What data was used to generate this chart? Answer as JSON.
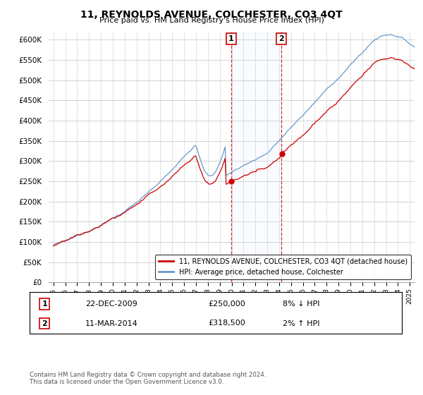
{
  "title": "11, REYNOLDS AVENUE, COLCHESTER, CO3 4QT",
  "subtitle": "Price paid vs. HM Land Registry's House Price Index (HPI)",
  "ylim": [
    0,
    620000
  ],
  "yticks": [
    0,
    50000,
    100000,
    150000,
    200000,
    250000,
    300000,
    350000,
    400000,
    450000,
    500000,
    550000,
    600000
  ],
  "legend_line1": "11, REYNOLDS AVENUE, COLCHESTER, CO3 4QT (detached house)",
  "legend_line2": "HPI: Average price, detached house, Colchester",
  "annotation1_date": "22-DEC-2009",
  "annotation1_price": "£250,000",
  "annotation1_hpi": "8% ↓ HPI",
  "annotation2_date": "11-MAR-2014",
  "annotation2_price": "£318,500",
  "annotation2_hpi": "2% ↑ HPI",
  "footer": "Contains HM Land Registry data © Crown copyright and database right 2024.\nThis data is licensed under the Open Government Licence v3.0.",
  "line_color_red": "#cc0000",
  "line_color_blue": "#6699cc",
  "sale1_x": 2009.97,
  "sale2_x": 2014.19,
  "sale1_price": 250000,
  "sale2_price": 318500
}
